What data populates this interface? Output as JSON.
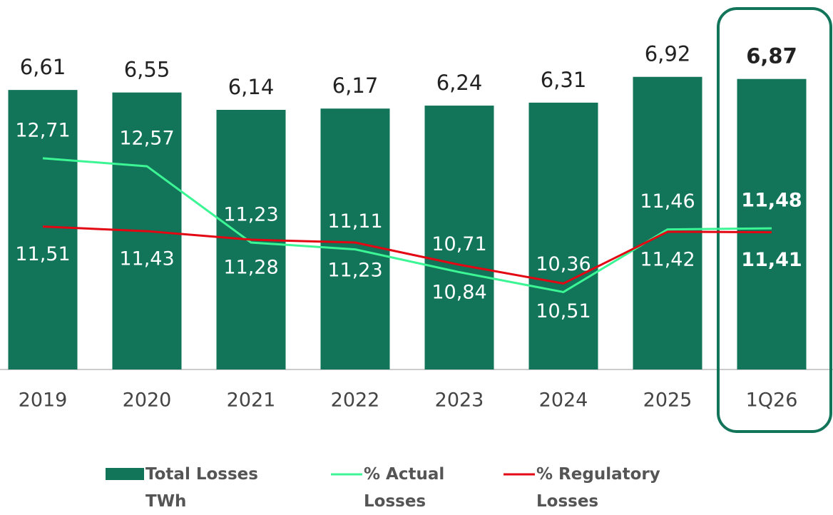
{
  "chart_data": {
    "type": "bar",
    "categories": [
      "2019",
      "2020",
      "2021",
      "2022",
      "2023",
      "2024",
      "2025",
      "1Q26"
    ],
    "ylim": [
      0,
      7
    ],
    "y2lim": [
      9,
      14.2
    ],
    "series": [
      {
        "name": "Total Losses TWh",
        "type": "bar",
        "color": "#127459",
        "values": [
          6.61,
          6.55,
          6.14,
          6.17,
          6.24,
          6.31,
          6.92,
          6.87
        ],
        "value_labels": [
          "6,61",
          "6,55",
          "6,14",
          "6,17",
          "6,24",
          "6,31",
          "6,92",
          "6,87"
        ]
      },
      {
        "name": "% Actual Losses",
        "type": "line",
        "axis": "y2",
        "color": "#3cf594",
        "values": [
          12.71,
          12.57,
          11.23,
          11.11,
          10.71,
          10.36,
          11.46,
          11.48
        ],
        "value_labels": [
          "12,71",
          "12,57",
          "11,23",
          "11,11",
          "10,71",
          "10,36",
          "11,46",
          "11,48"
        ]
      },
      {
        "name": "% Regulatory Losses",
        "type": "line",
        "axis": "y2",
        "color": "#e30613",
        "values": [
          11.51,
          11.43,
          11.28,
          11.23,
          10.84,
          10.51,
          11.42,
          11.41
        ],
        "value_labels": [
          "11,51",
          "11,43",
          "11,28",
          "11,23",
          "10,84",
          "10,51",
          "11,42",
          "11,41"
        ]
      }
    ]
  }
}
